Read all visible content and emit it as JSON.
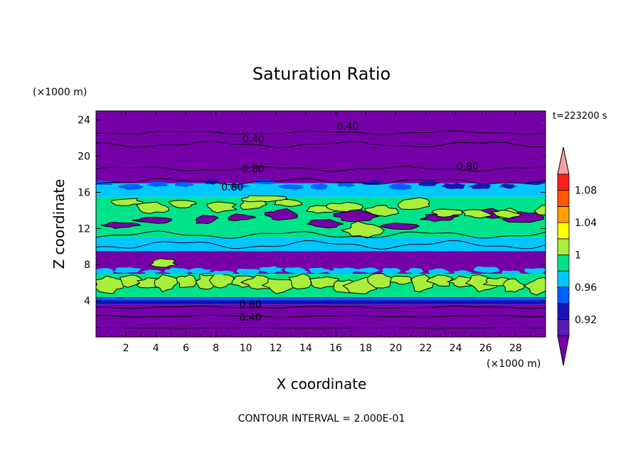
{
  "chart_data": {
    "type": "heatmap",
    "title": "Saturation Ratio",
    "xlabel": "X coordinate",
    "ylabel": "Z coordinate",
    "x_unit": "(×1000 m)",
    "y_unit": "(×1000 m)",
    "time_label": "t=223200 s",
    "footer": "CONTOUR INTERVAL = 2.000E-01",
    "xlim": [
      0,
      30
    ],
    "ylim": [
      0,
      25
    ],
    "x_ticks": [
      2,
      4,
      6,
      8,
      10,
      12,
      14,
      16,
      18,
      20,
      22,
      24,
      26,
      28
    ],
    "y_ticks": [
      4,
      8,
      12,
      16,
      20,
      24
    ],
    "colorbar": {
      "levels": [
        0.92,
        0.94,
        0.96,
        0.98,
        1.0,
        1.02,
        1.04,
        1.06,
        1.08,
        1.1
      ],
      "labels": [
        "0.92",
        "0.96",
        "1",
        "1.04",
        "1.08"
      ],
      "label_values": [
        0.92,
        0.96,
        1.0,
        1.04,
        1.08
      ],
      "colors": [
        "#7600a8",
        "#5a1bb4",
        "#1a14b8",
        "#0060ff",
        "#00c8ff",
        "#00e38a",
        "#a8ee3a",
        "#ffff00",
        "#ffa000",
        "#ff5a00",
        "#ff2020",
        "#f5a0a0"
      ]
    },
    "bands": [
      {
        "z": [
          0.0,
          3.6
        ],
        "level": "below 0.92"
      },
      {
        "z": [
          3.6,
          4.4
        ],
        "level": "0.92-0.96"
      },
      {
        "z": [
          4.4,
          7.0
        ],
        "level": "0.98-1.02"
      },
      {
        "z": [
          7.0,
          9.5
        ],
        "level": "below 0.92"
      },
      {
        "z": [
          9.5,
          11.0
        ],
        "level": "0.96-1.00"
      },
      {
        "z": [
          11.0,
          15.5
        ],
        "level": "0.98-1.02"
      },
      {
        "z": [
          15.5,
          17.0
        ],
        "level": "0.96-1.00"
      },
      {
        "z": [
          17.0,
          25.0
        ],
        "level": "below 0.92"
      }
    ],
    "contour_labels": [
      {
        "text": "0.40",
        "x": 16.8,
        "z": 23.3
      },
      {
        "text": "0.40",
        "x": 10.5,
        "z": 21.9
      },
      {
        "text": "0.80",
        "x": 10.5,
        "z": 18.6
      },
      {
        "text": "0.80",
        "x": 9.1,
        "z": 16.6
      },
      {
        "text": "0.80",
        "x": 24.8,
        "z": 18.9
      },
      {
        "text": "0.80",
        "x": 10.3,
        "z": 3.6
      },
      {
        "text": "0.40",
        "x": 10.3,
        "z": 2.2
      }
    ]
  }
}
